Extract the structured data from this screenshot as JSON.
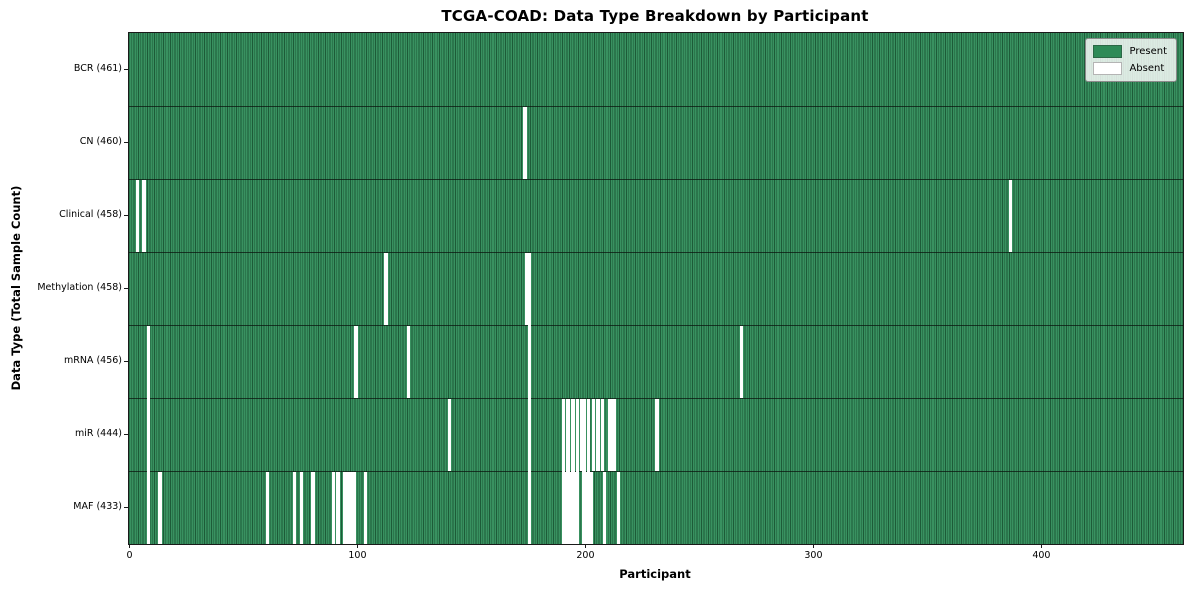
{
  "chart_data": {
    "type": "heatmap",
    "title": "TCGA-COAD: Data Type Breakdown by Participant",
    "xlabel": "Participant",
    "ylabel": "Data Type (Total Sample Count)",
    "n_participants": 461,
    "x_ticks": [
      0,
      100,
      200,
      300,
      400
    ],
    "grid": false,
    "legend_position": "upper right",
    "legend": [
      {
        "label": "Present",
        "color": "#2e8b57"
      },
      {
        "label": "Absent",
        "color": "#ffffff"
      }
    ],
    "colors": {
      "present": "#2e8b57",
      "absent": "#ffffff",
      "bar_edge": "#15301f",
      "row_separator": "#10200f"
    },
    "rows": [
      {
        "name": "BCR",
        "label": "BCR (461)",
        "count": 461,
        "absent": []
      },
      {
        "name": "CN",
        "label": "CN (460)",
        "count": 460,
        "absent": [
          173
        ]
      },
      {
        "name": "Clinical",
        "label": "Clinical (458)",
        "count": 458,
        "absent": [
          3,
          6,
          386
        ]
      },
      {
        "name": "Methylation",
        "label": "Methylation (458)",
        "count": 458,
        "absent": [
          112,
          174,
          175
        ]
      },
      {
        "name": "mRNA",
        "label": "mRNA (456)",
        "count": 456,
        "absent": [
          8,
          99,
          122,
          175,
          268
        ]
      },
      {
        "name": "miR",
        "label": "miR (444)",
        "count": 444,
        "absent": [
          8,
          140,
          175,
          190,
          192,
          194,
          196,
          198,
          199,
          201,
          203,
          205,
          207,
          210,
          211,
          212,
          231
        ]
      },
      {
        "name": "MAF",
        "label": "MAF (433)",
        "count": 433,
        "absent": [
          8,
          13,
          60,
          72,
          75,
          80,
          89,
          91,
          94,
          95,
          96,
          97,
          98,
          103,
          175,
          190,
          191,
          192,
          193,
          194,
          195,
          196,
          199,
          200,
          201,
          202,
          208,
          214
        ]
      }
    ]
  }
}
